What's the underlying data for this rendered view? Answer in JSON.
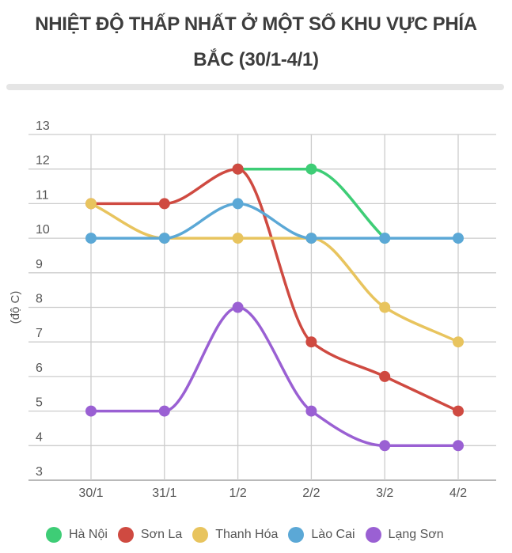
{
  "title": {
    "full": "NHIỆT ĐỘ THẤP NHẤT Ở MỘT SỐ KHU VỰC PHÍA BẮC (30/1-4/1)",
    "lines": [
      "NHIỆT ĐỘ THẤP NHẤT Ở MỘT SỐ KHU VỰC PHÍA",
      "BẮC (30/1-4/1)"
    ]
  },
  "chart_data": {
    "type": "line",
    "smooth": true,
    "title": "NHIỆT ĐỘ THẤP NHẤT Ở MỘT SỐ KHU VỰC PHÍA BẮC (30/1-4/1)",
    "xlabel": "",
    "ylabel": "(độ C)",
    "categories": [
      "30/1",
      "31/1",
      "1/2",
      "2/2",
      "3/2",
      "4/2"
    ],
    "series": [
      {
        "name": "Hà Nội",
        "color": "#3ecd76",
        "values": [
          null,
          null,
          12,
          12,
          10,
          null
        ]
      },
      {
        "name": "Sơn La",
        "color": "#cf4a41",
        "values": [
          11,
          11,
          12,
          7,
          6,
          5
        ]
      },
      {
        "name": "Thanh Hóa",
        "color": "#e8c45e",
        "values": [
          11,
          10,
          10,
          10,
          8,
          7
        ]
      },
      {
        "name": "Lào Cai",
        "color": "#5ba8d6",
        "values": [
          10,
          10,
          11,
          10,
          10,
          10
        ]
      },
      {
        "name": "Lạng Sơn",
        "color": "#9a60d3",
        "values": [
          5,
          5,
          8,
          5,
          4,
          4
        ]
      }
    ],
    "ylim": [
      3,
      13
    ],
    "ytick_step": 1,
    "grid": true,
    "legend_position": "bottom"
  },
  "colors": {
    "title_text": "#3d3d3d",
    "axis_text": "#565656",
    "gridline": "#cccccc",
    "baseline": "#b9b9b9",
    "divider": "#e5e5e5",
    "background": "#ffffff"
  }
}
